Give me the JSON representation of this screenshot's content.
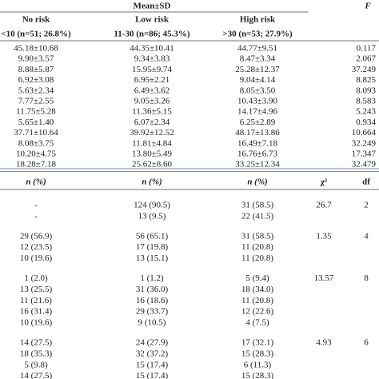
{
  "table1": {
    "header": {
      "group": "Mean±SD",
      "stat": "F",
      "columns": [
        "No risk",
        "Low risk",
        "High risk"
      ],
      "subcolumns": [
        "<10 (n=51; 26.8%)",
        "11-30 (n=86; 45.3%)",
        ">30 (n=53; 27.9%)"
      ]
    },
    "rows": [
      [
        "45.18±10.68",
        "44.35±10.41",
        "44.77±9.51",
        "0.117"
      ],
      [
        "9.90±3.57",
        "9.34±3.83",
        "8.47±3.34",
        "2.067"
      ],
      [
        "8.88±5.87",
        "15.95±9.74",
        "25.28±12.37",
        "37.249"
      ],
      [
        "6.92±3.08",
        "6.95±2.21",
        "9.04±4.14",
        "8.825"
      ],
      [
        "5.63±2.34",
        "6.49±3.62",
        "8.05±3.50",
        "8.093"
      ],
      [
        "7.77±2.55",
        "9.05±3.26",
        "10.43±3.90",
        "8.583"
      ],
      [
        "11.75±5.28",
        "11.36±5.15",
        "14.17±4.96",
        "5.243"
      ],
      [
        "5.65±1.40",
        "6.07±2.34",
        "6.25±2.89",
        "0.934"
      ],
      [
        "37.71±10.64",
        "39.92±12.52",
        "48.17±13.86",
        "10.664"
      ],
      [
        "8.08±3.75",
        "11.81±4.84",
        "16.49±7.18",
        "32.249"
      ],
      [
        "10.20±4.75",
        "13.80±5.49",
        "16.76±6.73",
        "17.347"
      ],
      [
        "18.28±7.18",
        "25.62±8.60",
        "33.25±12.34",
        "32.479"
      ]
    ]
  },
  "table2": {
    "header": [
      "n (%)",
      "n (%)",
      "n (%)",
      "χ²",
      "df"
    ],
    "groups": [
      [
        [
          "-",
          "124 (90.5)",
          "31 (58.5)",
          "26.7",
          "2"
        ],
        [
          "-",
          "13 (9.5)",
          "22 (41.5)"
        ]
      ],
      [
        [
          "29 (56.9)",
          "56 (65.1)",
          "31 (58.5)",
          "1.35",
          "4"
        ],
        [
          "12 (23.5)",
          "17 (19.8)",
          "11 (20.8)"
        ],
        [
          "10 (19.6)",
          "13 (15.1)",
          "11 (20.8)"
        ]
      ],
      [
        [
          "1 (2.0)",
          "1 (1.2)",
          "5 (9.4)",
          "13.57",
          "8"
        ],
        [
          "13 (25.5)",
          "31 (36.0)",
          "18 (34.0)"
        ],
        [
          "11 (21.6)",
          "16 (18.6)",
          "11 (20.8)"
        ],
        [
          "16 (31.4)",
          "29 (33.7)",
          "12 (22.6)"
        ],
        [
          "10 (19.6)",
          "9 (10.5)",
          "4 (7.5)"
        ]
      ],
      [
        [
          "14 (27.5)",
          "24 (27.9)",
          "17 (32.1)",
          "4.93",
          "6"
        ],
        [
          "18 (35.3)",
          "32 (37.2)",
          "15 (28.3)"
        ],
        [
          "5 (9.8)",
          "15 (17.4)",
          "6 (11.3)"
        ],
        [
          "14 (27.5)",
          "15 (17.4)",
          "15 (28.3)"
        ]
      ]
    ]
  }
}
